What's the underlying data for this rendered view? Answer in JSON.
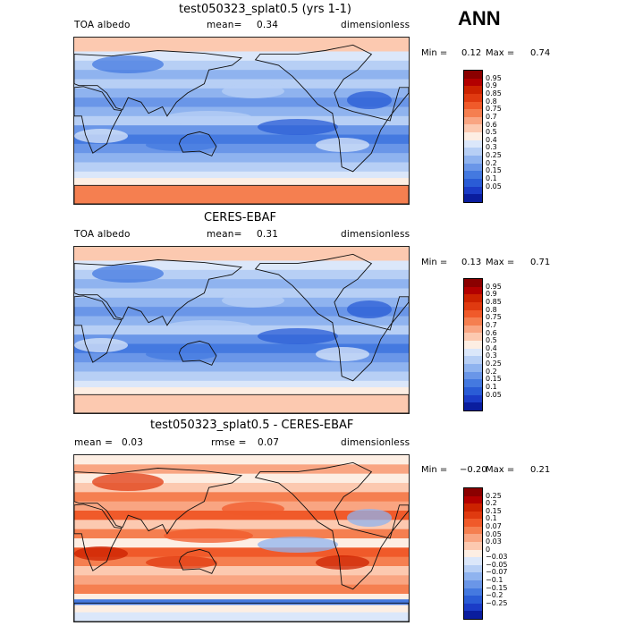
{
  "season": "ANN",
  "panels": [
    {
      "title": "test050323_splat0.5 (yrs 1-1)",
      "left_label": "TOA albedo",
      "stat_label": "mean=",
      "stat_value": "0.34",
      "stat2_label": "",
      "stat2_value": "",
      "units": "dimensionless",
      "min_label": "Min =",
      "min_value": "0.12",
      "max_label": "Max =",
      "max_value": "0.74",
      "kind": "model"
    },
    {
      "title": "CERES-EBAF",
      "left_label": "TOA albedo",
      "stat_label": "mean=",
      "stat_value": "0.31",
      "stat2_label": "",
      "stat2_value": "",
      "units": "dimensionless",
      "min_label": "Min =",
      "min_value": "0.13",
      "max_label": "Max =",
      "max_value": "0.71",
      "kind": "obs"
    },
    {
      "title": "test050323_splat0.5 - CERES-EBAF",
      "left_label": "mean =",
      "stat_label": "",
      "stat_value": "0.03",
      "stat2_label": "rmse =",
      "stat2_value": "0.07",
      "units": "dimensionless",
      "min_label": "Min =",
      "min_value": "−0.20",
      "max_label": "Max =",
      "max_value": "0.21",
      "kind": "diff"
    }
  ],
  "colorbar_albedo": {
    "levels": [
      "0.95",
      "0.9",
      "0.85",
      "0.8",
      "0.75",
      "0.7",
      "0.6",
      "0.5",
      "0.4",
      "0.3",
      "0.25",
      "0.2",
      "0.15",
      "0.1",
      "0.05"
    ],
    "colors": [
      "#8b0000",
      "#b30000",
      "#cc2200",
      "#e03a10",
      "#f05a2a",
      "#f57f50",
      "#f9a582",
      "#fcc9b0",
      "#fdeee3",
      "#dbe7fa",
      "#b7cff5",
      "#8fb3ef",
      "#6a96e8",
      "#4479e0",
      "#2a5cd6",
      "#1b3cc7",
      "#0a1d9e"
    ]
  },
  "colorbar_diff": {
    "levels": [
      "0.25",
      "0.2",
      "0.15",
      "0.1",
      "0.07",
      "0.05",
      "0.03",
      "0",
      "−0.03",
      "−0.05",
      "−0.07",
      "−0.1",
      "−0.15",
      "−0.2",
      "−0.25"
    ],
    "colors": [
      "#8b0000",
      "#b30000",
      "#cc2200",
      "#e03a10",
      "#f05a2a",
      "#f57f50",
      "#f9a582",
      "#fcc9b0",
      "#fdeee3",
      "#dbe7fa",
      "#b7cff5",
      "#8fb3ef",
      "#6a96e8",
      "#4479e0",
      "#2a5cd6",
      "#1b3cc7",
      "#0a1d9e"
    ]
  }
}
